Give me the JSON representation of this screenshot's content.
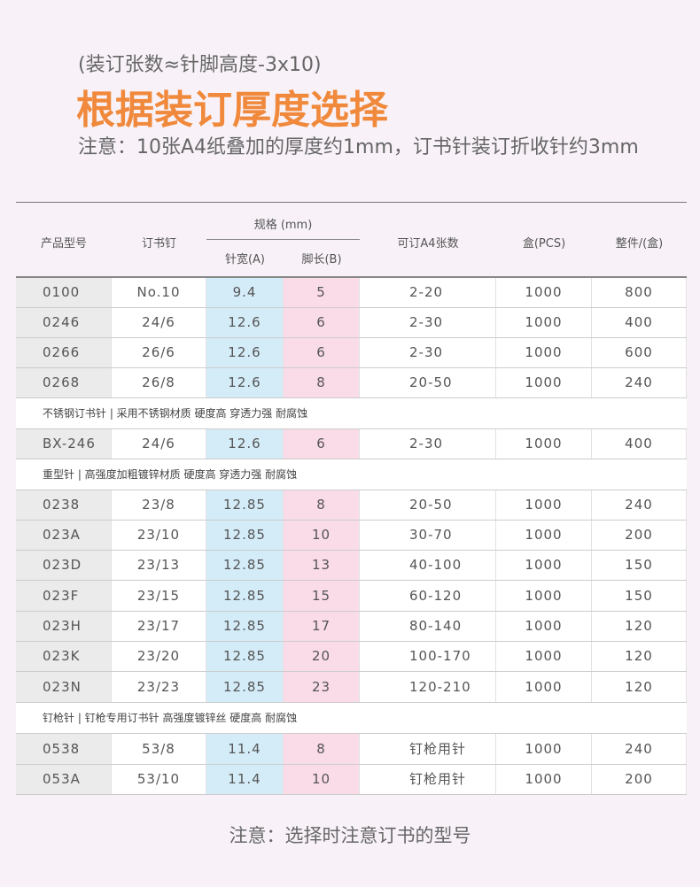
{
  "header": {
    "formula": "(装订张数≈针脚高度-3x10)",
    "title": "根据装订厚度选择",
    "note": "注意：10张A4纸叠加的厚度约1mm，订书针装订折收针约3mm"
  },
  "table": {
    "columns": {
      "model": "产品型号",
      "staple": "订书钉",
      "spec": "规格 (mm)",
      "width": "针宽(A)",
      "length": "脚长(B)",
      "sheets": "可订A4张数",
      "box": "盒(PCS)",
      "case": "整件/(盒)"
    },
    "rows": [
      [
        "0100",
        "No.10",
        "9.4",
        "5",
        "2-20",
        "1000",
        "800"
      ],
      [
        "0246",
        "24/6",
        "12.6",
        "6",
        "2-30",
        "1000",
        "400"
      ],
      [
        "0266",
        "26/6",
        "12.6",
        "6",
        "2-30",
        "1000",
        "600"
      ],
      [
        "0268",
        "26/8",
        "12.6",
        "8",
        "20-50",
        "1000",
        "240"
      ],
      {
        "note": "不锈钢订书针 | 采用不锈钢材质 硬度高 穿透力强  耐腐蚀"
      },
      [
        "BX-246",
        "24/6",
        "12.6",
        "6",
        "2-30",
        "1000",
        "400"
      ],
      {
        "note": "重型针 | 高强度加粗镀锌材质 硬度高 穿透力强  耐腐蚀"
      },
      [
        "0238",
        "23/8",
        "12.85",
        "8",
        "20-50",
        "1000",
        "240"
      ],
      [
        "023A",
        "23/10",
        "12.85",
        "10",
        "30-70",
        "1000",
        "200"
      ],
      [
        "023D",
        "23/13",
        "12.85",
        "13",
        "40-100",
        "1000",
        "150"
      ],
      [
        "023F",
        "23/15",
        "12.85",
        "15",
        "60-120",
        "1000",
        "150"
      ],
      [
        "023H",
        "23/17",
        "12.85",
        "17",
        "80-140",
        "1000",
        "120"
      ],
      [
        "023K",
        "23/20",
        "12.85",
        "20",
        "100-170",
        "1000",
        "120"
      ],
      [
        "023N",
        "23/23",
        "12.85",
        "23",
        "120-210",
        "1000",
        "120"
      ],
      {
        "note": "钉枪针 | 钉枪专用订书针 高强度镀锌丝 硬度高 耐腐蚀"
      },
      [
        "0538",
        "53/8",
        "11.4",
        "8",
        "钉枪用针",
        "1000",
        "240"
      ],
      [
        "053A",
        "53/10",
        "11.4",
        "10",
        "钉枪用针",
        "1000",
        "200"
      ]
    ]
  },
  "footer": "注意：选择时注意订书的型号"
}
